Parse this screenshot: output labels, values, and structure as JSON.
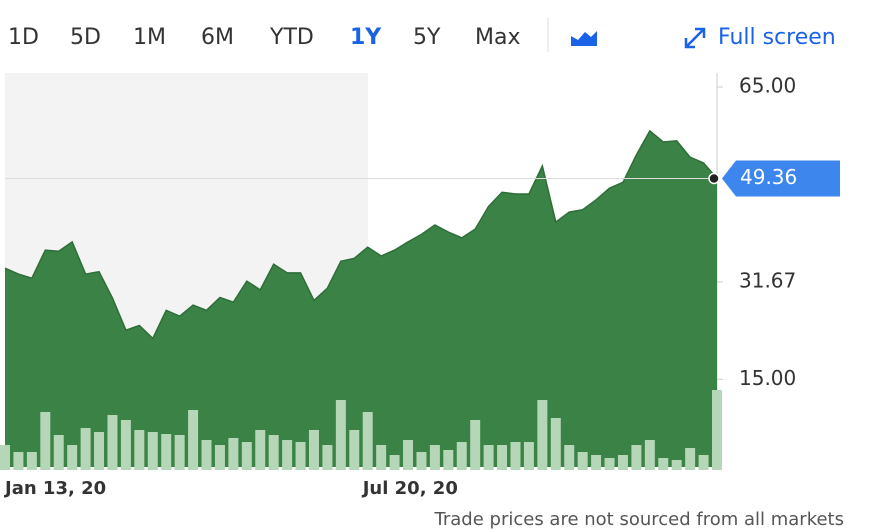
{
  "toolbar": {
    "ranges": [
      "1D",
      "5D",
      "1M",
      "6M",
      "YTD",
      "1Y",
      "5Y",
      "Max"
    ],
    "active": "1Y",
    "full_screen": "Full screen"
  },
  "chart_data": {
    "type": "area",
    "categories": [
      "Jan 13, 20",
      null,
      null,
      null,
      null,
      null,
      null,
      null,
      null,
      null,
      null,
      null,
      null,
      null,
      null,
      null,
      null,
      null,
      null,
      null,
      null,
      null,
      null,
      null,
      null,
      null,
      null,
      "Jul 20, 20",
      null,
      null,
      null,
      null,
      null,
      null,
      null,
      null,
      null,
      null,
      null,
      null,
      null,
      null,
      null,
      null,
      null,
      null,
      null,
      null,
      null,
      null,
      null,
      null,
      null,
      null
    ],
    "series": [
      {
        "color": "#3a8245",
        "values": [
          34.0,
          33.0,
          32.3,
          37.1,
          36.9,
          38.5,
          33.0,
          33.4,
          28.9,
          23.4,
          24.2,
          22.0,
          26.8,
          25.8,
          27.7,
          26.8,
          29.0,
          28.2,
          31.8,
          30.3,
          34.7,
          33.2,
          33.2,
          28.5,
          30.6,
          35.2,
          35.7,
          37.6,
          36.1,
          37.1,
          38.5,
          39.8,
          41.4,
          40.2,
          39.2,
          40.7,
          44.6,
          47.0,
          46.7,
          46.7,
          51.5,
          41.9,
          43.6,
          44.0,
          45.7,
          47.7,
          48.7,
          53.4,
          57.5,
          55.6,
          55.8,
          53.0,
          52.0,
          49.36
        ]
      }
    ],
    "volume": {
      "color": "#b5d6b7",
      "values": [
        25,
        18,
        18,
        58,
        35,
        25,
        42,
        38,
        55,
        50,
        40,
        38,
        36,
        35,
        60,
        30,
        25,
        32,
        28,
        40,
        35,
        30,
        28,
        40,
        25,
        70,
        40,
        58,
        25,
        15,
        30,
        18,
        25,
        20,
        28,
        50,
        25,
        25,
        28,
        28,
        70,
        52,
        25,
        18,
        15,
        12,
        15,
        25,
        30,
        12,
        10,
        22,
        15,
        80
      ]
    },
    "ylim": [
      0,
      67.4
    ],
    "yticks": [
      {
        "value": 65,
        "label": "65.00"
      },
      {
        "value": 31.67,
        "label": "31.67"
      },
      {
        "value": 15,
        "label": "15.00"
      }
    ],
    "last_value": {
      "value": 49.36,
      "label": "49.36"
    }
  },
  "footnote": "Trade prices are not sourced from all markets"
}
